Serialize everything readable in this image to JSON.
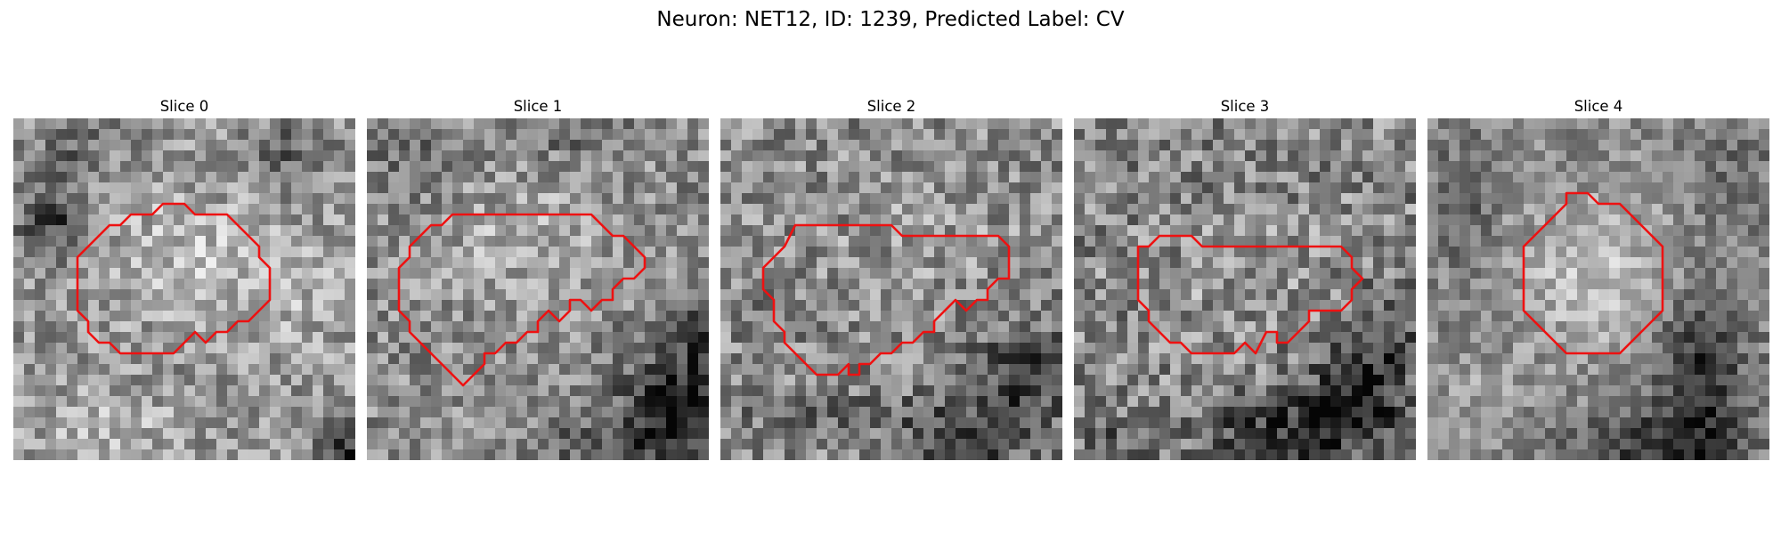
{
  "figure": {
    "title": "Neuron: NET12, ID: 1239, Predicted Label: CV"
  },
  "contour_color": "#ee1111",
  "panels": [
    {
      "title": "Slice 0"
    },
    {
      "title": "Slice 1"
    },
    {
      "title": "Slice 2"
    },
    {
      "title": "Slice 3"
    },
    {
      "title": "Slice 4"
    }
  ]
}
